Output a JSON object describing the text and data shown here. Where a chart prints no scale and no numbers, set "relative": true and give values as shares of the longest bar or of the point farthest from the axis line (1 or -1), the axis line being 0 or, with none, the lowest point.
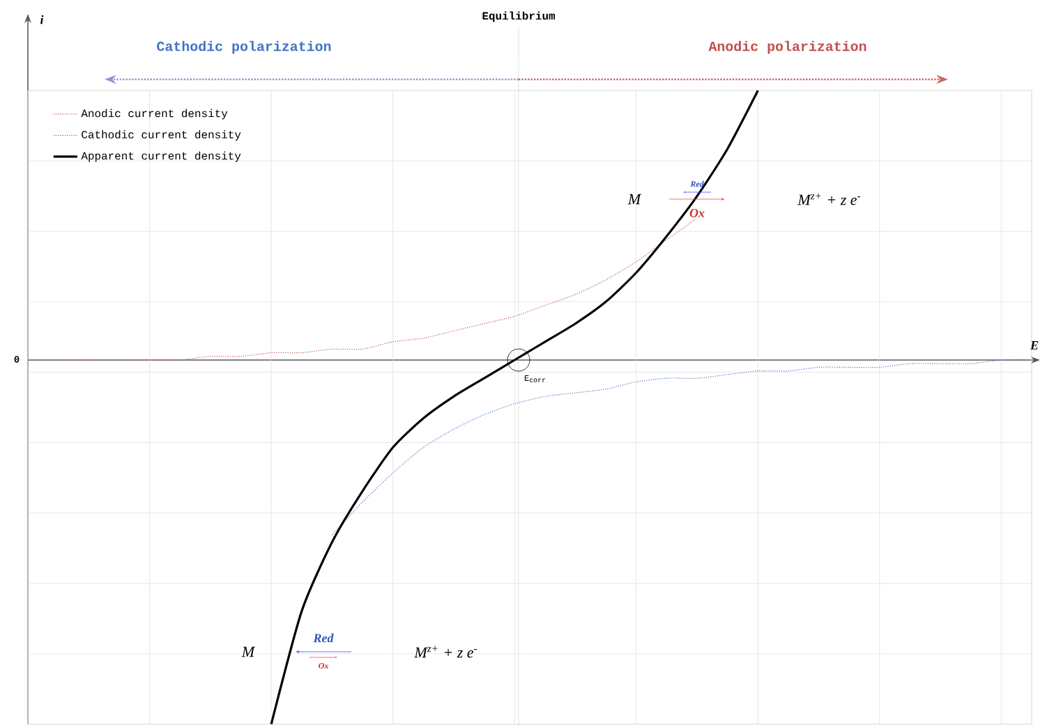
{
  "chart_data": {
    "type": "line",
    "relative": true,
    "categories": [
      null,
      null,
      null,
      null,
      null,
      null,
      null,
      null,
      null,
      null,
      null,
      null,
      null,
      null,
      null,
      null,
      null,
      null,
      null,
      null,
      null,
      null,
      null,
      null,
      null,
      null,
      null,
      null,
      null,
      null,
      null,
      null,
      null,
      null
    ],
    "series": [
      {
        "name": "Anodic current density",
        "color": "#c0504d",
        "line_style": "dotted",
        "values": [
          0,
          0,
          0,
          0,
          0,
          0,
          0.01,
          0.01,
          0.02,
          0.02,
          0.03,
          0.03,
          0.05,
          0.06,
          0.08,
          0.1,
          0.12,
          0.15,
          0.18,
          0.22,
          0.27,
          0.33,
          0.39,
          null,
          null,
          null,
          null,
          null,
          null,
          null,
          null,
          null,
          null,
          null
        ]
      },
      {
        "name": "Cathodic current density",
        "color": "#4472c4",
        "line_style": "dotted",
        "values": [
          null,
          null,
          null,
          null,
          null,
          null,
          null,
          null,
          null,
          null,
          -0.48,
          -0.39,
          -0.31,
          -0.24,
          -0.19,
          -0.15,
          -0.12,
          -0.1,
          -0.09,
          -0.08,
          -0.06,
          -0.05,
          -0.05,
          -0.04,
          -0.03,
          -0.03,
          -0.02,
          -0.02,
          -0.02,
          -0.01,
          -0.01,
          -0.01,
          0,
          0
        ]
      },
      {
        "name": "Apparent current density",
        "color": "#000000",
        "line_style": "solid",
        "values": [
          null,
          null,
          null,
          null,
          null,
          null,
          null,
          null,
          -1,
          -0.69,
          -0.5,
          -0.36,
          -0.24,
          -0.16,
          -0.1,
          -0.05,
          0,
          0.05,
          0.1,
          0.16,
          0.24,
          0.34,
          0.45,
          0.58,
          0.74,
          null,
          null,
          null,
          null,
          null,
          null,
          null,
          null,
          null
        ]
      }
    ],
    "annotations": [
      "Cathodic polarization",
      "Anodic polarization",
      "0",
      "M",
      "Red",
      "Ox",
      "M$^{z+}$ + z e$^{-}$",
      "M",
      "Red",
      "Ox",
      "M$^{z+}$ + z e$^{-}$",
      "E$_{corr}$",
      "Equilibrium",
      "i",
      "E"
    ],
    "grid": true,
    "legend": "top left",
    "marker": "none"
  }
}
